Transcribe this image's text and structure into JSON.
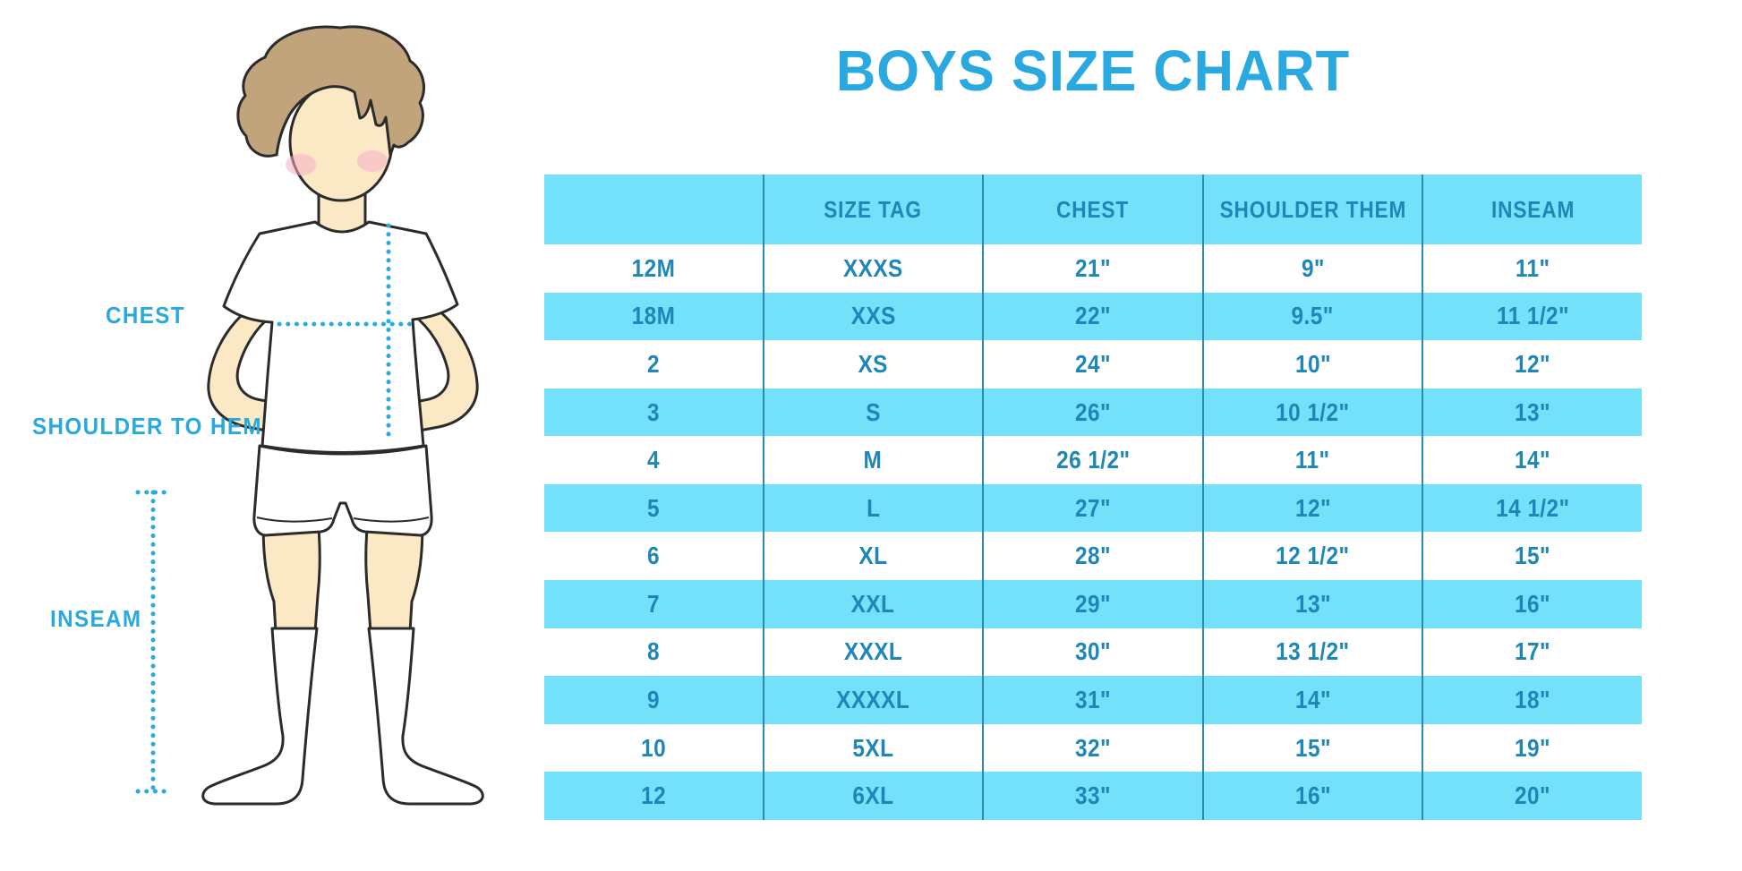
{
  "chart_data": {
    "type": "table",
    "title": "BOYS SIZE CHART",
    "columns": [
      "",
      "SIZE TAG",
      "CHEST",
      "SHOULDER THEM",
      "INSEAM"
    ],
    "rows": [
      [
        "12M",
        "XXXS",
        "21\"",
        "9\"",
        "11\""
      ],
      [
        "18M",
        "XXS",
        "22\"",
        "9.5\"",
        "11 1/2\""
      ],
      [
        "2",
        "XS",
        "24\"",
        "10\"",
        "12\""
      ],
      [
        "3",
        "S",
        "26\"",
        "10 1/2\"",
        "13\""
      ],
      [
        "4",
        "M",
        "26 1/2\"",
        "11\"",
        "14\""
      ],
      [
        "5",
        "L",
        "27\"",
        "12\"",
        "14 1/2\""
      ],
      [
        "6",
        "XL",
        "28\"",
        "12 1/2\"",
        "15\""
      ],
      [
        "7",
        "XXL",
        "29\"",
        "13\"",
        "16\""
      ],
      [
        "8",
        "XXXL",
        "30\"",
        "13 1/2\"",
        "17\""
      ],
      [
        "9",
        "XXXXL",
        "31\"",
        "14\"",
        "18\""
      ],
      [
        "10",
        "5XL",
        "32\"",
        "15\"",
        "19\""
      ],
      [
        "12",
        "6XL",
        "33\"",
        "16\"",
        "20\""
      ]
    ],
    "layout": {
      "header_background": "blue",
      "row_striping": "alternating white/blue starting white",
      "grid": "vertical dividers only"
    }
  },
  "figure": {
    "labels": {
      "chest": "CHEST",
      "shoulder_to_hem": "SHOULDER TO HEM",
      "inseam": "INSEAM"
    }
  },
  "colors": {
    "accent_blue": "#29A9E0",
    "table_blue": "#73E1FA",
    "table_text": "#1F86B8",
    "divider": "#2E89B4",
    "dotted_line": "#29ABE2",
    "skin": "#FBE8C5",
    "hair": "#C2A47C",
    "blush": "#F5AFC6",
    "outline": "#2b2b2b"
  }
}
